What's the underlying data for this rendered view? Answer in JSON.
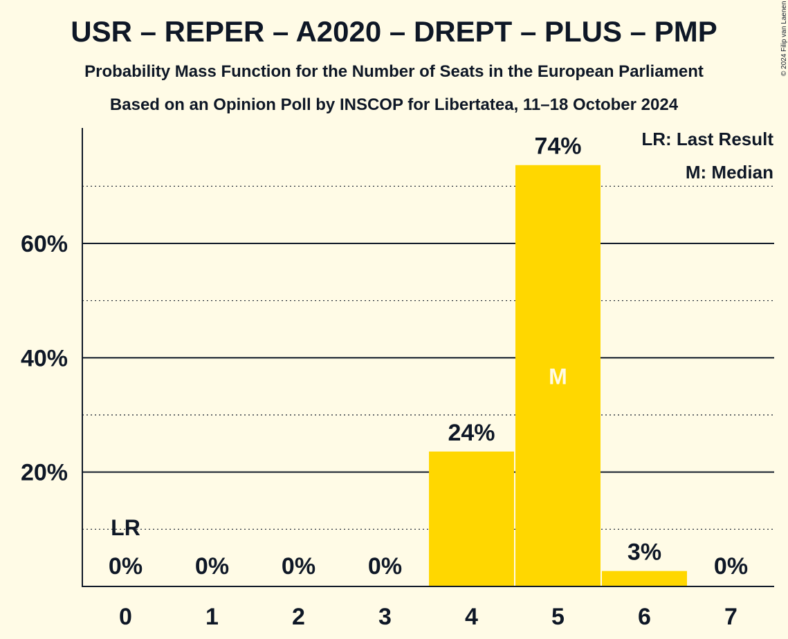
{
  "header": {
    "title": "USR – REPER – A2020 – DREPT – PLUS – PMP",
    "subtitle1": "Probability Mass Function for the Number of Seats in the European Parliament",
    "subtitle2": "Based on an Opinion Poll by INSCOP for Libertatea, 11–18 October 2024",
    "copyright": "© 2024 Filip van Laenen"
  },
  "chart_data": {
    "type": "bar",
    "categories": [
      "0",
      "1",
      "2",
      "3",
      "4",
      "5",
      "6",
      "7"
    ],
    "values": [
      0,
      0,
      0,
      0,
      23.6,
      73.7,
      2.7,
      0
    ],
    "data_labels": [
      "0%",
      "0%",
      "0%",
      "0%",
      "24%",
      "74%",
      "3%",
      "0%"
    ],
    "ylim": [
      0,
      80
    ],
    "yticks": [
      20,
      40,
      60
    ],
    "ytick_labels": [
      "20%",
      "40%",
      "60%"
    ],
    "minor_gridlines": [
      10,
      30,
      50,
      70
    ],
    "bar_color": "#FFD700",
    "last_result": {
      "seat": "0",
      "label": "LR"
    },
    "median": {
      "seat": "5",
      "label": "M"
    },
    "legend": {
      "placement": "top-right",
      "items": [
        "LR: Last Result",
        "M: Median"
      ]
    }
  }
}
